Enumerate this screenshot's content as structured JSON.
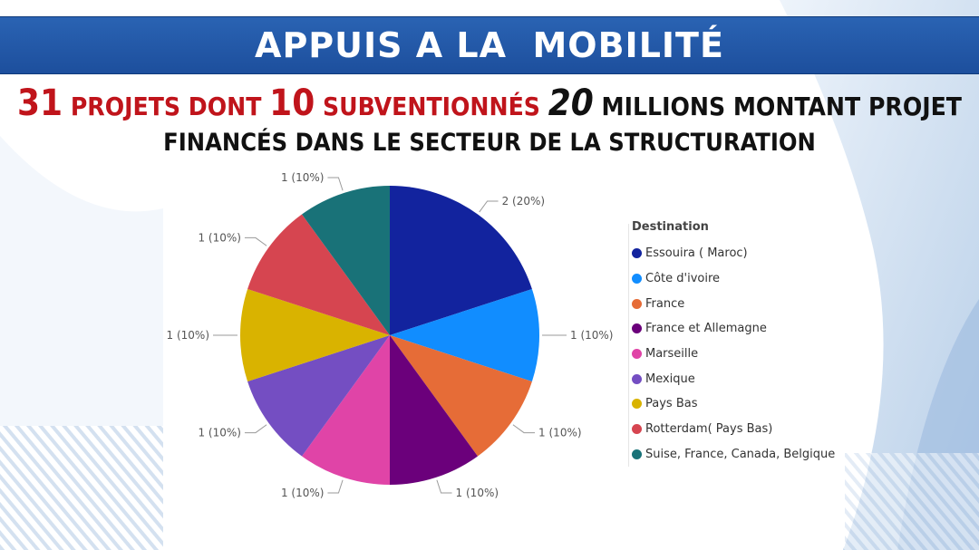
{
  "banner": {
    "title": "APPUIS A LA  MOBILITÉ"
  },
  "headline": {
    "n_projects": "31",
    "projects_text": "PROJETS DONT",
    "n_subsidized": "10",
    "subsidized_text": "SUBVENTIONNÉS",
    "amount": "20",
    "amount_text": "MILLIONS MONTANT PROJET",
    "line2": "FINANCÉS DANS LE SECTEUR DE LA STRUCTURATION"
  },
  "chart_data": {
    "type": "pie",
    "legend_title": "Destination",
    "legend_position": "right",
    "slices": [
      {
        "name": "Essouira ( Maroc)",
        "value": 2,
        "label": "2 (20%)",
        "color": "#12239e"
      },
      {
        "name": "Côte d'ivoire",
        "value": 1,
        "label": "1 (10%)",
        "color": "#118dff"
      },
      {
        "name": "France",
        "value": 1,
        "label": "1 (10%)",
        "color": "#e66c37"
      },
      {
        "name": "France et Allemagne",
        "value": 1,
        "label": "1 (10%)",
        "color": "#6b007b"
      },
      {
        "name": "Marseille",
        "value": 1,
        "label": "1 (10%)",
        "color": "#e044a7"
      },
      {
        "name": "Mexique",
        "value": 1,
        "label": "1 (10%)",
        "color": "#744ec2"
      },
      {
        "name": "Pays Bas",
        "value": 1,
        "label": "1 (10%)",
        "color": "#d9b300"
      },
      {
        "name": "Rotterdam( Pays Bas)",
        "value": 1,
        "label": "1 (10%)",
        "color": "#d64550"
      },
      {
        "name": "Suise, France, Canada, Belgique",
        "value": 1,
        "label": "1 (10%)",
        "color": "#197278"
      }
    ]
  }
}
